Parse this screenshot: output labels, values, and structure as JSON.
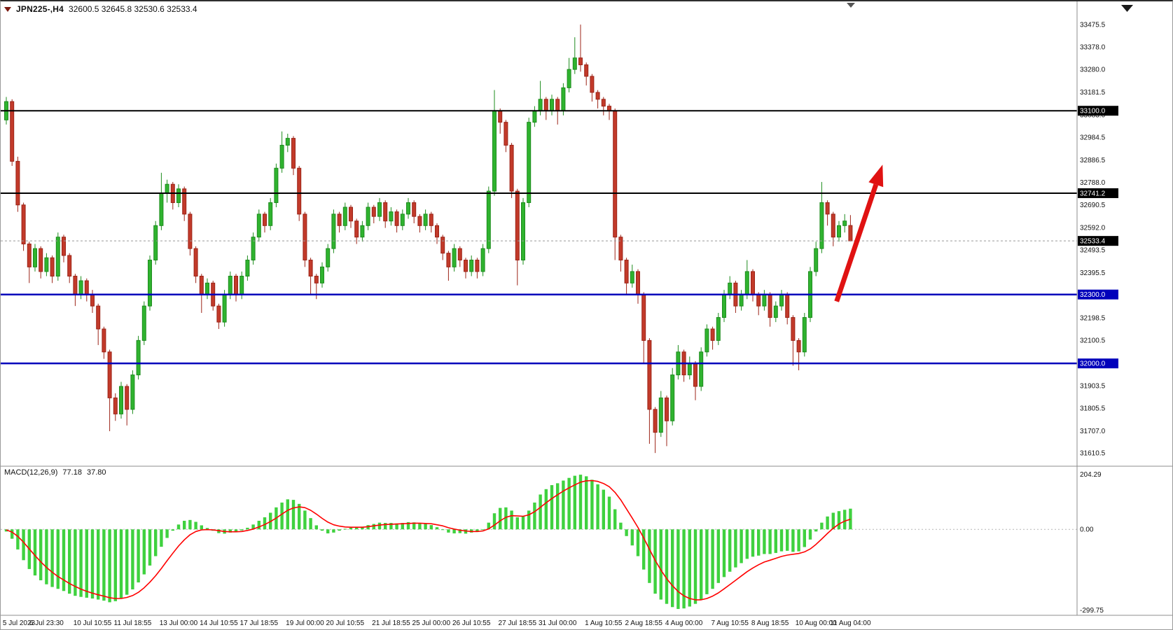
{
  "colors": {
    "background": "#ffffff",
    "bull": "#1e8c1e",
    "bull_fill": "#2fb32f",
    "bear": "#9c2418",
    "bear_fill": "#c23a2a",
    "macd_hist": "#3fd13f",
    "macd_signal": "#ff0000",
    "line_black": "#000000",
    "line_blue": "#0000bb",
    "current_price_bg": "#000000",
    "axis_text": "#111111",
    "arrow": "#e01212",
    "separator": "#8c8c8c"
  },
  "title": {
    "symbol_period": "JPN225-,H4",
    "ohlc": "32600.5 32645.8 32530.6 32533.4"
  },
  "indicator": {
    "label": "MACD(12,26,9)",
    "macd_value": "77.18",
    "signal_value": "37.80"
  },
  "chart_data": {
    "type": "candlestick+macd",
    "symbol": "JPN225-",
    "timeframe": "H4",
    "ohlc_display": {
      "open": 32600.5,
      "high": 32645.8,
      "low": 32530.6,
      "close": 32533.4
    },
    "price_axis": {
      "min": 31610.5,
      "max": 33475.5,
      "labels": [
        "33475.5",
        "33378.0",
        "33280.0",
        "33181.5",
        "33083.0",
        "32984.5",
        "32886.5",
        "32788.0",
        "32690.5",
        "32592.0",
        "32493.5",
        "32395.5",
        "32297.0",
        "32198.5",
        "32100.5",
        "32002.0",
        "31903.5",
        "31805.5",
        "31707.0",
        "31610.5"
      ]
    },
    "hlines": [
      {
        "value": 33100.0,
        "label": "33100.0",
        "color": "#000000"
      },
      {
        "value": 32741.2,
        "label": "32741.2",
        "color": "#000000"
      },
      {
        "value": 32300.0,
        "label": "32300.0",
        "color": "#0000bb"
      },
      {
        "value": 32000.0,
        "label": "32000.0",
        "color": "#0000bb"
      }
    ],
    "current_price": {
      "value": 32533.4,
      "label": "32533.4"
    },
    "candles": [
      [
        33060,
        33160,
        33040,
        33140
      ],
      [
        33140,
        33150,
        32860,
        32880
      ],
      [
        32880,
        32900,
        32660,
        32690
      ],
      [
        32690,
        32700,
        32490,
        32520
      ],
      [
        32520,
        32530,
        32350,
        32420
      ],
      [
        32420,
        32520,
        32400,
        32500
      ],
      [
        32500,
        32510,
        32370,
        32400
      ],
      [
        32400,
        32480,
        32380,
        32460
      ],
      [
        32460,
        32470,
        32350,
        32380
      ],
      [
        32380,
        32570,
        32360,
        32550
      ],
      [
        32550,
        32560,
        32440,
        32470
      ],
      [
        32470,
        32480,
        32350,
        32380
      ],
      [
        32380,
        32390,
        32250,
        32300
      ],
      [
        32300,
        32380,
        32280,
        32360
      ],
      [
        32360,
        32370,
        32270,
        32300
      ],
      [
        32300,
        32320,
        32220,
        32250
      ],
      [
        32250,
        32260,
        32080,
        32150
      ],
      [
        32150,
        32160,
        32020,
        32050
      ],
      [
        32050,
        32060,
        31705,
        31850
      ],
      [
        31850,
        31870,
        31750,
        31780
      ],
      [
        31780,
        31920,
        31760,
        31900
      ],
      [
        31900,
        31910,
        31730,
        31800
      ],
      [
        31800,
        31970,
        31780,
        31950
      ],
      [
        31950,
        32120,
        31930,
        32100
      ],
      [
        32100,
        32270,
        32080,
        32250
      ],
      [
        32250,
        32470,
        32230,
        32450
      ],
      [
        32450,
        32620,
        32430,
        32600
      ],
      [
        32600,
        32830,
        32580,
        32740
      ],
      [
        32740,
        32800,
        32700,
        32780
      ],
      [
        32780,
        32790,
        32670,
        32700
      ],
      [
        32700,
        32780,
        32680,
        32760
      ],
      [
        32760,
        32770,
        32620,
        32650
      ],
      [
        32650,
        32660,
        32470,
        32500
      ],
      [
        32500,
        32510,
        32350,
        32380
      ],
      [
        32380,
        32390,
        32220,
        32300
      ],
      [
        32300,
        32370,
        32280,
        32350
      ],
      [
        32350,
        32360,
        32230,
        32250
      ],
      [
        32250,
        32260,
        32150,
        32180
      ],
      [
        32180,
        32320,
        32160,
        32300
      ],
      [
        32300,
        32400,
        32280,
        32380
      ],
      [
        32380,
        32390,
        32270,
        32300
      ],
      [
        32300,
        32400,
        32280,
        32380
      ],
      [
        32380,
        32470,
        32360,
        32450
      ],
      [
        32450,
        32570,
        32430,
        32550
      ],
      [
        32550,
        32670,
        32530,
        32650
      ],
      [
        32650,
        32660,
        32570,
        32600
      ],
      [
        32600,
        32720,
        32580,
        32700
      ],
      [
        32700,
        32870,
        32680,
        32850
      ],
      [
        32850,
        33010,
        32830,
        32950
      ],
      [
        32950,
        33000,
        32920,
        32980
      ],
      [
        32980,
        32990,
        32820,
        32850
      ],
      [
        32850,
        32860,
        32620,
        32650
      ],
      [
        32650,
        32660,
        32420,
        32450
      ],
      [
        32450,
        32460,
        32300,
        32380
      ],
      [
        32380,
        32390,
        32280,
        32350
      ],
      [
        32350,
        32440,
        32330,
        32420
      ],
      [
        32420,
        32520,
        32400,
        32500
      ],
      [
        32500,
        32670,
        32480,
        32650
      ],
      [
        32650,
        32660,
        32570,
        32600
      ],
      [
        32600,
        32700,
        32580,
        32680
      ],
      [
        32680,
        32690,
        32590,
        32620
      ],
      [
        32620,
        32630,
        32520,
        32550
      ],
      [
        32550,
        32620,
        32530,
        32600
      ],
      [
        32600,
        32700,
        32580,
        32680
      ],
      [
        32680,
        32690,
        32610,
        32640
      ],
      [
        32640,
        32720,
        32620,
        32700
      ],
      [
        32700,
        32710,
        32590,
        32620
      ],
      [
        32620,
        32680,
        32600,
        32660
      ],
      [
        32660,
        32670,
        32570,
        32600
      ],
      [
        32600,
        32670,
        32580,
        32650
      ],
      [
        32650,
        32720,
        32630,
        32700
      ],
      [
        32700,
        32710,
        32610,
        32640
      ],
      [
        32640,
        32650,
        32570,
        32600
      ],
      [
        32600,
        32670,
        32580,
        32650
      ],
      [
        32650,
        32660,
        32570,
        32600
      ],
      [
        32600,
        32610,
        32520,
        32550
      ],
      [
        32550,
        32560,
        32450,
        32480
      ],
      [
        32480,
        32490,
        32360,
        32420
      ],
      [
        32420,
        32520,
        32400,
        32500
      ],
      [
        32500,
        32510,
        32420,
        32450
      ],
      [
        32450,
        32460,
        32370,
        32400
      ],
      [
        32400,
        32470,
        32380,
        32450
      ],
      [
        32450,
        32460,
        32370,
        32400
      ],
      [
        32400,
        32520,
        32380,
        32500
      ],
      [
        32500,
        32770,
        32480,
        32750
      ],
      [
        32750,
        33190,
        32730,
        33100
      ],
      [
        33100,
        33110,
        33000,
        33050
      ],
      [
        33050,
        33060,
        32920,
        32950
      ],
      [
        32950,
        32960,
        32720,
        32750
      ],
      [
        32750,
        32760,
        32340,
        32450
      ],
      [
        32450,
        32720,
        32430,
        32700
      ],
      [
        32700,
        33070,
        32680,
        33050
      ],
      [
        33050,
        33120,
        33030,
        33100
      ],
      [
        33100,
        33230,
        33080,
        33150
      ],
      [
        33150,
        33160,
        33060,
        33100
      ],
      [
        33100,
        33170,
        33080,
        33150
      ],
      [
        33150,
        33160,
        33040,
        33100
      ],
      [
        33100,
        33220,
        33080,
        33200
      ],
      [
        33200,
        33330,
        33180,
        33280
      ],
      [
        33280,
        33420,
        33260,
        33330
      ],
      [
        33330,
        33475,
        33270,
        33300
      ],
      [
        33300,
        33310,
        33210,
        33250
      ],
      [
        33250,
        33260,
        33140,
        33180
      ],
      [
        33180,
        33190,
        33110,
        33150
      ],
      [
        33150,
        33160,
        33080,
        33120
      ],
      [
        33120,
        33130,
        33060,
        33100
      ],
      [
        33100,
        33110,
        32450,
        32550
      ],
      [
        32550,
        32560,
        32400,
        32450
      ],
      [
        32450,
        32460,
        32300,
        32350
      ],
      [
        32350,
        32430,
        32330,
        32400
      ],
      [
        32400,
        32410,
        32260,
        32300
      ],
      [
        32300,
        32310,
        32000,
        32100
      ],
      [
        32100,
        32110,
        31650,
        31800
      ],
      [
        31800,
        31810,
        31610,
        31700
      ],
      [
        31700,
        31880,
        31680,
        31850
      ],
      [
        31850,
        31860,
        31640,
        31750
      ],
      [
        31750,
        31980,
        31730,
        31950
      ],
      [
        31950,
        32080,
        31930,
        32050
      ],
      [
        32050,
        32060,
        31920,
        31950
      ],
      [
        31950,
        32030,
        31930,
        32000
      ],
      [
        32000,
        32010,
        31840,
        31900
      ],
      [
        31900,
        32070,
        31880,
        32050
      ],
      [
        32050,
        32170,
        32030,
        32150
      ],
      [
        32150,
        32160,
        32060,
        32100
      ],
      [
        32100,
        32220,
        32080,
        32200
      ],
      [
        32200,
        32320,
        32180,
        32300
      ],
      [
        32300,
        32380,
        32280,
        32350
      ],
      [
        32350,
        32360,
        32220,
        32250
      ],
      [
        32250,
        32320,
        32230,
        32300
      ],
      [
        32300,
        32450,
        32280,
        32400
      ],
      [
        32400,
        32410,
        32270,
        32300
      ],
      [
        32300,
        32310,
        32210,
        32250
      ],
      [
        32250,
        32320,
        32230,
        32300
      ],
      [
        32300,
        32310,
        32160,
        32200
      ],
      [
        32200,
        32270,
        32180,
        32250
      ],
      [
        32250,
        32320,
        32230,
        32300
      ],
      [
        32300,
        32310,
        32170,
        32200
      ],
      [
        32200,
        32210,
        31990,
        32100
      ],
      [
        32100,
        32110,
        31970,
        32050
      ],
      [
        32050,
        32220,
        32030,
        32200
      ],
      [
        32200,
        32420,
        32180,
        32400
      ],
      [
        32400,
        32530,
        32380,
        32500
      ],
      [
        32500,
        32790,
        32480,
        32700
      ],
      [
        32700,
        32710,
        32600,
        32650
      ],
      [
        32650,
        32660,
        32510,
        32550
      ],
      [
        32550,
        32620,
        32530,
        32600
      ],
      [
        32600,
        32650,
        32570,
        32620
      ],
      [
        32600.5,
        32645.8,
        32530.6,
        32533.4
      ]
    ],
    "time_labels": [
      {
        "text": "5 Jul 2023",
        "index": 0
      },
      {
        "text": "6 Jul 23:30",
        "index": 7
      },
      {
        "text": "10 Jul 10:55",
        "index": 15
      },
      {
        "text": "11 Jul 18:55",
        "index": 22
      },
      {
        "text": "13 Jul 00:00",
        "index": 30
      },
      {
        "text": "14 Jul 10:55",
        "index": 37
      },
      {
        "text": "17 Jul 18:55",
        "index": 44
      },
      {
        "text": "19 Jul 00:00",
        "index": 52
      },
      {
        "text": "20 Jul 10:55",
        "index": 59
      },
      {
        "text": "21 Jul 18:55",
        "index": 67
      },
      {
        "text": "25 Jul 00:00",
        "index": 74
      },
      {
        "text": "26 Jul 10:55",
        "index": 81
      },
      {
        "text": "27 Jul 18:55",
        "index": 89
      },
      {
        "text": "31 Jul 00:00",
        "index": 96
      },
      {
        "text": "1 Aug 10:55",
        "index": 104
      },
      {
        "text": "2 Aug 18:55",
        "index": 111
      },
      {
        "text": "4 Aug 00:00",
        "index": 118
      },
      {
        "text": "7 Aug 10:55",
        "index": 126
      },
      {
        "text": "8 Aug 18:55",
        "index": 133
      },
      {
        "text": "10 Aug 00:00",
        "index": 141
      },
      {
        "text": "11 Aug 04:00",
        "index": 147
      }
    ],
    "macd": {
      "axis": {
        "max": 204.29,
        "min": -299.75,
        "labels": {
          "top": "204.29",
          "zero": "0.00",
          "bottom": "-299.75"
        }
      },
      "histogram": [
        -8,
        -35,
        -75,
        -115,
        -148,
        -172,
        -190,
        -205,
        -215,
        -222,
        -230,
        -240,
        -248,
        -252,
        -255,
        -258,
        -262,
        -266,
        -272,
        -268,
        -258,
        -244,
        -224,
        -198,
        -168,
        -135,
        -100,
        -65,
        -32,
        -5,
        18,
        32,
        35,
        28,
        15,
        5,
        -5,
        -14,
        -16,
        -12,
        -10,
        -4,
        6,
        18,
        32,
        45,
        62,
        82,
        100,
        112,
        110,
        95,
        70,
        42,
        15,
        -5,
        -15,
        -12,
        -5,
        2,
        6,
        6,
        10,
        16,
        20,
        25,
        24,
        24,
        22,
        24,
        27,
        26,
        22,
        20,
        16,
        8,
        -2,
        -12,
        -15,
        -14,
        -16,
        -12,
        -10,
        0,
        25,
        60,
        80,
        82,
        70,
        45,
        48,
        70,
        100,
        130,
        150,
        165,
        172,
        182,
        192,
        200,
        204,
        198,
        185,
        168,
        148,
        122,
        75,
        25,
        -25,
        -60,
        -100,
        -150,
        -200,
        -240,
        -262,
        -278,
        -290,
        -297,
        -295,
        -288,
        -278,
        -262,
        -242,
        -222,
        -200,
        -178,
        -158,
        -142,
        -126,
        -110,
        -102,
        -98,
        -92,
        -92,
        -88,
        -82,
        -80,
        -84,
        -82,
        -66,
        -38,
        -8,
        25,
        48,
        62,
        68,
        73,
        77.18
      ],
      "signal": [
        -2,
        -10,
        -26,
        -48,
        -73,
        -98,
        -121,
        -142,
        -160,
        -176,
        -189,
        -202,
        -213,
        -223,
        -231,
        -238,
        -244,
        -249,
        -255,
        -258,
        -258,
        -254,
        -247,
        -235,
        -218,
        -197,
        -173,
        -146,
        -117,
        -89,
        -62,
        -39,
        -20,
        -8,
        -2,
        -1,
        -2,
        -5,
        -8,
        -9,
        -9,
        -8,
        -4,
        1,
        9,
        18,
        29,
        42,
        57,
        71,
        80,
        84,
        81,
        71,
        57,
        41,
        27,
        17,
        12,
        9,
        8,
        8,
        8,
        10,
        13,
        16,
        18,
        19,
        20,
        21,
        22,
        23,
        23,
        22,
        21,
        17,
        13,
        6,
        1,
        -3,
        -6,
        -8,
        -8,
        -6,
        2,
        16,
        32,
        45,
        51,
        50,
        49,
        54,
        66,
        82,
        99,
        115,
        129,
        143,
        155,
        166,
        176,
        181,
        182,
        179,
        171,
        159,
        138,
        110,
        76,
        42,
        7,
        -32,
        -74,
        -116,
        -152,
        -184,
        -210,
        -232,
        -248,
        -258,
        -263,
        -263,
        -258,
        -249,
        -237,
        -222,
        -206,
        -190,
        -174,
        -158,
        -144,
        -132,
        -122,
        -115,
        -108,
        -101,
        -96,
        -93,
        -90,
        -84,
        -73,
        -56,
        -36,
        -15,
        4,
        20,
        31,
        37.8
      ]
    },
    "annotation_arrow": {
      "from_index": 144.6,
      "from_price": 32270,
      "to_index": 152.6,
      "to_price": 32865
    }
  }
}
